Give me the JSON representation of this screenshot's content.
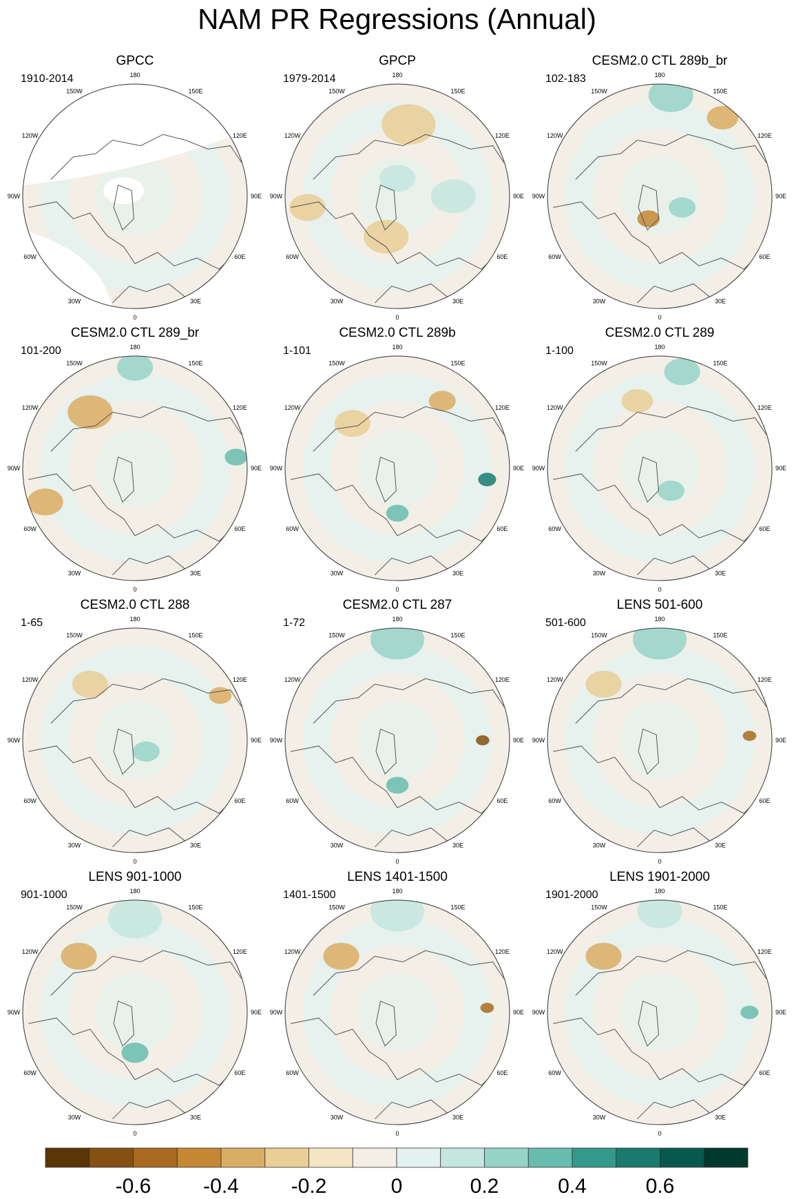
{
  "title": "NAM PR Regressions (Annual)",
  "lon_labels": [
    "180",
    "150E",
    "120E",
    "90E",
    "60E",
    "30E",
    "0",
    "30W",
    "60W",
    "90W",
    "120W",
    "150W"
  ],
  "panels": [
    {
      "title": "GPCC",
      "period": "1910-2014",
      "masked": true
    },
    {
      "title": "GPCP",
      "period": "1979-2014",
      "masked": false
    },
    {
      "title": "CESM2.0 CTL 289b_br",
      "period": "102-183",
      "masked": false
    },
    {
      "title": "CESM2.0 CTL 289_br",
      "period": "101-200",
      "masked": false
    },
    {
      "title": "CESM2.0 CTL 289b",
      "period": "1-101",
      "masked": false
    },
    {
      "title": "CESM2.0 CTL 289",
      "period": "1-100",
      "masked": false
    },
    {
      "title": "CESM2.0 CTL 288",
      "period": "1-65",
      "masked": false
    },
    {
      "title": "CESM2.0 CTL 287",
      "period": "1-72",
      "masked": false
    },
    {
      "title": "LENS 501-600",
      "period": "501-600",
      "masked": false
    },
    {
      "title": "LENS 901-1000",
      "period": "901-1000",
      "masked": false
    },
    {
      "title": "LENS 1401-1500",
      "period": "1401-1500",
      "masked": false
    },
    {
      "title": "LENS 1901-2000",
      "period": "1901-2000",
      "masked": false
    }
  ],
  "colorbar": {
    "colors": [
      "#5a3508",
      "#845113",
      "#a86a1f",
      "#c48733",
      "#d9ad63",
      "#e9ce95",
      "#f5e6c3",
      "#f3efe6",
      "#e3f1ef",
      "#c3e6df",
      "#96d4c8",
      "#67bcae",
      "#339a8b",
      "#187b6d",
      "#07594d",
      "#00392e"
    ],
    "tick_labels": [
      "-0.6",
      "-0.4",
      "-0.2",
      "0",
      "0.2",
      "0.4",
      "0.6"
    ]
  },
  "blobs": [
    [],
    [
      [
        0.1,
        0.55,
        0.08,
        "#e9ce95"
      ],
      [
        0.45,
        0.68,
        0.1,
        "#e9ce95"
      ],
      [
        0.55,
        0.18,
        0.12,
        "#e9ce95"
      ],
      [
        0.75,
        0.5,
        0.1,
        "#c3e6df"
      ],
      [
        0.5,
        0.42,
        0.08,
        "#c3e6df"
      ]
    ],
    [
      [
        0.78,
        0.15,
        0.07,
        "#d9ad63"
      ],
      [
        0.55,
        0.05,
        0.1,
        "#96d4c8"
      ],
      [
        0.6,
        0.55,
        0.06,
        "#96d4c8"
      ],
      [
        0.45,
        0.6,
        0.05,
        "#c48733"
      ]
    ],
    [
      [
        0.3,
        0.25,
        0.1,
        "#d9ad63"
      ],
      [
        0.1,
        0.65,
        0.08,
        "#d9ad63"
      ],
      [
        0.5,
        0.05,
        0.08,
        "#96d4c8"
      ],
      [
        0.95,
        0.45,
        0.05,
        "#67bcae"
      ]
    ],
    [
      [
        0.3,
        0.3,
        0.08,
        "#e9ce95"
      ],
      [
        0.9,
        0.55,
        0.04,
        "#187b6d"
      ],
      [
        0.5,
        0.7,
        0.05,
        "#67bcae"
      ],
      [
        0.7,
        0.2,
        0.06,
        "#d9ad63"
      ]
    ],
    [
      [
        0.4,
        0.2,
        0.07,
        "#e9ce95"
      ],
      [
        0.6,
        0.07,
        0.08,
        "#96d4c8"
      ],
      [
        0.55,
        0.6,
        0.06,
        "#96d4c8"
      ]
    ],
    [
      [
        0.3,
        0.25,
        0.08,
        "#e9ce95"
      ],
      [
        0.88,
        0.3,
        0.05,
        "#d9ad63"
      ],
      [
        0.55,
        0.55,
        0.06,
        "#96d4c8"
      ]
    ],
    [
      [
        0.5,
        0.05,
        0.12,
        "#96d4c8"
      ],
      [
        0.88,
        0.5,
        0.03,
        "#845113"
      ],
      [
        0.5,
        0.7,
        0.05,
        "#67bcae"
      ]
    ],
    [
      [
        0.25,
        0.25,
        0.08,
        "#e9ce95"
      ],
      [
        0.5,
        0.05,
        0.12,
        "#96d4c8"
      ],
      [
        0.9,
        0.48,
        0.03,
        "#a86a1f"
      ]
    ],
    [
      [
        0.25,
        0.25,
        0.08,
        "#d9ad63"
      ],
      [
        0.5,
        0.08,
        0.12,
        "#c3e6df"
      ],
      [
        0.5,
        0.68,
        0.06,
        "#67bcae"
      ]
    ],
    [
      [
        0.25,
        0.25,
        0.08,
        "#d9ad63"
      ],
      [
        0.9,
        0.48,
        0.03,
        "#a86a1f"
      ],
      [
        0.5,
        0.05,
        0.12,
        "#c3e6df"
      ]
    ],
    [
      [
        0.25,
        0.25,
        0.08,
        "#d9ad63"
      ],
      [
        0.5,
        0.05,
        0.1,
        "#c3e6df"
      ],
      [
        0.9,
        0.5,
        0.04,
        "#67bcae"
      ]
    ]
  ]
}
